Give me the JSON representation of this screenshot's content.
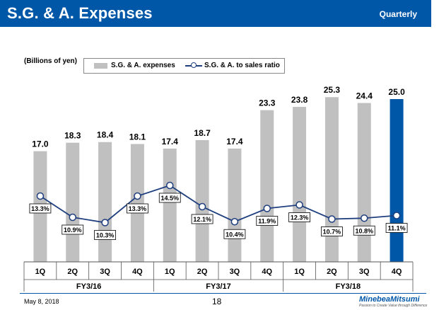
{
  "header": {
    "title": "S.G. & A. Expenses",
    "subtitle": "Quarterly"
  },
  "unit_label": "(Billions of yen)",
  "legend": {
    "bar": "S.G. & A. expenses",
    "line": "S.G. & A. to sales ratio"
  },
  "colors": {
    "header": "#0057a8",
    "bar": "#c0c0c0",
    "highlight_bar": "#0057a8",
    "line": "#1f3f7f"
  },
  "chart_data": {
    "type": "bar",
    "title": "S.G. & A. Expenses",
    "ylabel": "Billions of yen",
    "categories": [
      "1Q",
      "2Q",
      "3Q",
      "4Q",
      "1Q",
      "2Q",
      "3Q",
      "4Q",
      "1Q",
      "2Q",
      "3Q",
      "4Q"
    ],
    "groups": [
      {
        "label": "FY3/16",
        "quarters": 4
      },
      {
        "label": "FY3/17",
        "quarters": 4
      },
      {
        "label": "FY3/18",
        "quarters": 4
      }
    ],
    "series": [
      {
        "name": "S.G. & A. expenses",
        "kind": "bar",
        "values": [
          17.0,
          18.3,
          18.4,
          18.1,
          17.4,
          18.7,
          17.4,
          23.3,
          23.8,
          25.3,
          24.4,
          25.0
        ],
        "labels": [
          "17.0",
          "18.3",
          "18.4",
          "18.1",
          "17.4",
          "18.7",
          "17.4",
          "23.3",
          "23.8",
          "25.3",
          "24.4",
          "25.0"
        ]
      },
      {
        "name": "S.G. & A. to sales ratio",
        "kind": "line",
        "unit": "%",
        "values": [
          13.3,
          10.9,
          10.3,
          13.3,
          14.5,
          12.1,
          10.4,
          11.9,
          12.3,
          10.7,
          10.8,
          11.1
        ],
        "labels": [
          "13.3%",
          "10.9%",
          "10.3%",
          "13.3%",
          "14.5%",
          "12.1%",
          "10.4%",
          "11.9%",
          "12.3%",
          "10.7%",
          "10.8%",
          "11.1%"
        ]
      }
    ],
    "highlight_index": 11,
    "ylim": [
      0,
      28
    ]
  },
  "footer": {
    "date": "May 8, 2018",
    "page": "18",
    "logo": "MinebeaMitsumi",
    "tagline": "Passion to Create Value through Difference"
  }
}
